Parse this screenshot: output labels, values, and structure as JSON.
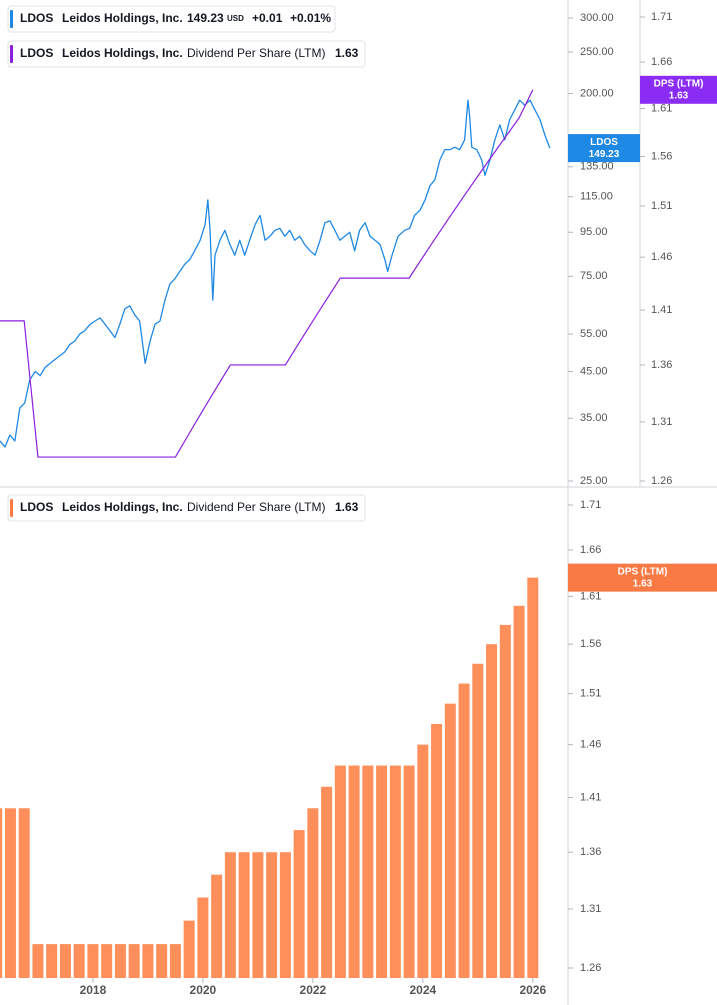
{
  "chart_data": [
    {
      "type": "line",
      "company": "Leidos Holdings, Inc.",
      "currency": "USD",
      "change": "+0.01",
      "change_percent": "+0.01%",
      "xlim": [
        2016.31,
        2026.64
      ],
      "ylim": [
        25,
        300
      ],
      "log_y": true,
      "yticks": [
        {
          "value": 25,
          "label": "25.00"
        },
        {
          "value": 35,
          "label": "35.00"
        },
        {
          "value": 45,
          "label": "45.00"
        },
        {
          "value": 55,
          "label": "55.00"
        },
        {
          "value": 75,
          "label": "75.00"
        },
        {
          "value": 95,
          "label": "95.00"
        },
        {
          "value": 115,
          "label": "115.00"
        },
        {
          "value": 135,
          "label": "135.00"
        },
        {
          "value": 200,
          "label": "200.00"
        },
        {
          "value": 250,
          "label": "250.00"
        },
        {
          "value": 300,
          "label": "300.00"
        }
      ],
      "y2lim": [
        1.26,
        1.71
      ],
      "log_y2": true,
      "y2ticks": [
        1.26,
        1.31,
        1.36,
        1.41,
        1.46,
        1.51,
        1.56,
        1.61,
        1.66,
        1.71
      ],
      "series": [
        {
          "name": "LDOS",
          "color": "#1e88e5",
          "x": [
            2016.31,
            2016.4,
            2016.49,
            2016.58,
            2016.67,
            2016.76,
            2016.85,
            2016.95,
            2017.04,
            2017.13,
            2017.22,
            2017.31,
            2017.4,
            2017.49,
            2017.58,
            2017.67,
            2017.76,
            2017.85,
            2017.95,
            2018.04,
            2018.13,
            2018.22,
            2018.31,
            2018.4,
            2018.49,
            2018.58,
            2018.67,
            2018.76,
            2018.85,
            2018.95,
            2019.04,
            2019.13,
            2019.22,
            2019.31,
            2019.4,
            2019.49,
            2019.58,
            2019.67,
            2019.76,
            2019.85,
            2019.95,
            2020.04,
            2020.09,
            2020.13,
            2020.18,
            2020.22,
            2020.31,
            2020.4,
            2020.49,
            2020.58,
            2020.67,
            2020.76,
            2020.85,
            2020.95,
            2021.04,
            2021.13,
            2021.22,
            2021.31,
            2021.4,
            2021.49,
            2021.58,
            2021.67,
            2021.76,
            2021.85,
            2021.95,
            2022.04,
            2022.13,
            2022.22,
            2022.31,
            2022.4,
            2022.49,
            2022.58,
            2022.67,
            2022.76,
            2022.85,
            2022.95,
            2023.04,
            2023.13,
            2023.22,
            2023.31,
            2023.36,
            2023.44,
            2023.55,
            2023.67,
            2023.76,
            2023.85,
            2023.95,
            2024.04,
            2024.13,
            2024.22,
            2024.31,
            2024.4,
            2024.49,
            2024.58,
            2024.67,
            2024.76,
            2024.82,
            2024.85,
            2024.89,
            2024.98,
            2025.07,
            2025.13,
            2025.22,
            2025.31,
            2025.4,
            2025.49,
            2025.58,
            2025.67,
            2025.76,
            2025.85,
            2025.95,
            2026.04,
            2026.13,
            2026.22,
            2026.31
          ],
          "values": [
            31,
            30,
            32,
            31,
            37,
            38,
            43,
            45,
            44,
            46,
            47,
            48,
            49,
            50,
            52,
            53,
            55,
            56,
            58,
            59,
            60,
            58,
            56,
            54,
            58,
            63,
            64,
            61,
            59,
            47,
            53,
            58,
            59,
            66,
            72,
            74,
            77,
            80,
            82,
            86,
            91,
            99,
            113,
            96,
            66,
            84,
            91,
            96,
            89,
            84,
            91,
            84,
            91,
            99,
            104,
            91,
            93,
            96,
            97,
            93,
            96,
            91,
            93,
            89,
            86,
            84,
            91,
            100,
            101,
            96,
            91,
            93,
            95,
            86,
            96,
            100,
            93,
            91,
            89,
            82,
            77,
            84,
            93,
            96,
            97,
            104,
            107,
            113,
            122,
            126,
            140,
            148,
            148,
            150,
            148,
            156,
            193,
            178,
            150,
            148,
            140,
            129,
            140,
            156,
            169,
            156,
            174,
            183,
            193,
            188,
            193,
            183,
            174,
            160,
            149.23
          ]
        },
        {
          "name": "Dividend Per Share (LTM)",
          "color": "#8b1fe0",
          "axis": "y2",
          "tag_label": "DPS (LTM)",
          "tag_color": "#8b2cf5",
          "x": [
            2016.25,
            2016.5,
            2016.75,
            2017.0,
            2017.25,
            2017.5,
            2017.75,
            2018.0,
            2018.25,
            2018.5,
            2018.75,
            2019.0,
            2019.25,
            2019.5,
            2019.75,
            2020.0,
            2020.25,
            2020.5,
            2020.75,
            2021.0,
            2021.25,
            2021.5,
            2021.75,
            2022.0,
            2022.25,
            2022.5,
            2022.75,
            2023.0,
            2023.25,
            2023.5,
            2023.75,
            2024.0,
            2024.25,
            2024.5,
            2024.75,
            2025.0,
            2025.25,
            2025.5,
            2025.75,
            2026.0
          ],
          "values": [
            1.4,
            1.4,
            1.4,
            1.28,
            1.28,
            1.28,
            1.28,
            1.28,
            1.28,
            1.28,
            1.28,
            1.28,
            1.28,
            1.28,
            1.3,
            1.32,
            1.34,
            1.36,
            1.36,
            1.36,
            1.36,
            1.36,
            1.38,
            1.4,
            1.42,
            1.44,
            1.44,
            1.44,
            1.44,
            1.44,
            1.44,
            1.46,
            1.48,
            1.5,
            1.52,
            1.54,
            1.56,
            1.58,
            1.6,
            1.63
          ]
        }
      ]
    },
    {
      "type": "bar",
      "ticker": "LDOS",
      "company": "Leidos Holdings, Inc.",
      "x": [
        2016.25,
        2016.5,
        2016.75,
        2017.0,
        2017.25,
        2017.5,
        2017.75,
        2018.0,
        2018.25,
        2018.5,
        2018.75,
        2019.0,
        2019.25,
        2019.5,
        2019.75,
        2020.0,
        2020.25,
        2020.5,
        2020.75,
        2021.0,
        2021.25,
        2021.5,
        2021.75,
        2022.0,
        2022.25,
        2022.5,
        2022.75,
        2023.0,
        2023.25,
        2023.5,
        2023.75,
        2024.0,
        2024.25,
        2024.5,
        2024.75,
        2025.0,
        2025.25,
        2025.5,
        2025.75,
        2026.0
      ],
      "xlim": [
        2016.31,
        2026.64
      ],
      "xticks": [
        2018,
        2020,
        2022,
        2024,
        2026
      ],
      "ylim": [
        1.26,
        1.71
      ],
      "log_y": true,
      "yticks": [
        1.26,
        1.31,
        1.36,
        1.41,
        1.46,
        1.51,
        1.56,
        1.61,
        1.66,
        1.71
      ],
      "series": [
        {
          "name": "Dividend Per Share (LTM)",
          "color": "#ff8f5a",
          "tag_label": "DPS (LTM)",
          "tag_color": "#f97a45",
          "values": [
            1.4,
            1.4,
            1.4,
            1.28,
            1.28,
            1.28,
            1.28,
            1.28,
            1.28,
            1.28,
            1.28,
            1.28,
            1.28,
            1.28,
            1.3,
            1.32,
            1.34,
            1.36,
            1.36,
            1.36,
            1.36,
            1.36,
            1.38,
            1.4,
            1.42,
            1.44,
            1.44,
            1.44,
            1.44,
            1.44,
            1.44,
            1.46,
            1.48,
            1.5,
            1.52,
            1.54,
            1.56,
            1.58,
            1.6,
            1.63
          ]
        }
      ]
    }
  ]
}
